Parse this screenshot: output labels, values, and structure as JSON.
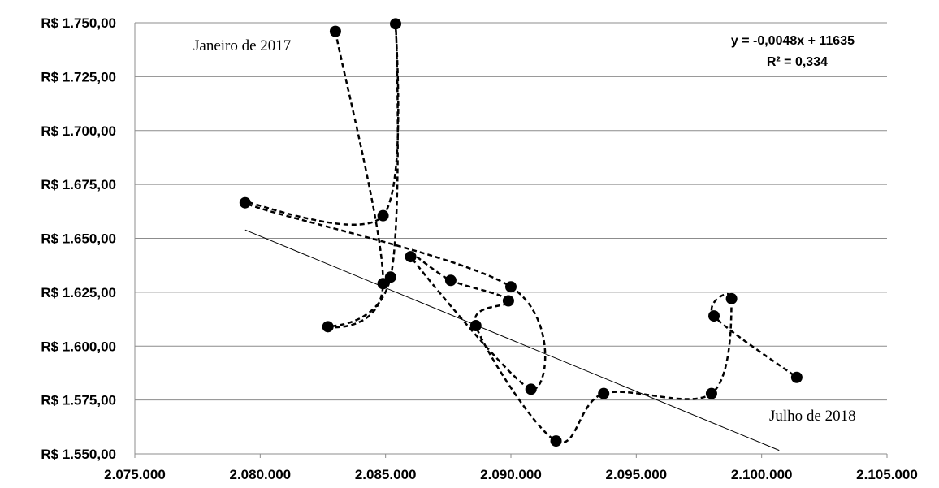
{
  "chart_data": {
    "type": "scatter",
    "title": "",
    "xlabel": "",
    "ylabel": "",
    "xlim": [
      2075000,
      2105000
    ],
    "ylim": [
      1550,
      1750
    ],
    "x_ticks": [
      2075000,
      2080000,
      2085000,
      2090000,
      2095000,
      2100000,
      2105000
    ],
    "x_tick_labels": [
      "2.075.000",
      "2.080.000",
      "2.085.000",
      "2.090.000",
      "2.095.000",
      "2.100.000",
      "2.105.000"
    ],
    "y_ticks": [
      1550,
      1575,
      1600,
      1625,
      1650,
      1675,
      1700,
      1725,
      1750
    ],
    "y_tick_labels": [
      "R$ 1.550,00",
      "R$ 1.575,00",
      "R$ 1.600,00",
      "R$ 1.625,00",
      "R$ 1.650,00",
      "R$ 1.675,00",
      "R$ 1.700,00",
      "R$ 1.725,00",
      "R$ 1.750,00"
    ],
    "grid": "horizontal",
    "connector": "smoothed dashed line in chronological order",
    "series": [
      {
        "color": "#000000",
        "points": [
          {
            "x": 2083000,
            "y": 1746.0
          },
          {
            "x": 2084900,
            "y": 1629.0
          },
          {
            "x": 2082700,
            "y": 1609.0
          },
          {
            "x": 2085200,
            "y": 1632.0
          },
          {
            "x": 2085400,
            "y": 1749.5
          },
          {
            "x": 2084900,
            "y": 1660.5
          },
          {
            "x": 2079400,
            "y": 1666.5
          },
          {
            "x": 2090000,
            "y": 1627.5
          },
          {
            "x": 2090800,
            "y": 1580.0
          },
          {
            "x": 2086000,
            "y": 1641.5
          },
          {
            "x": 2087600,
            "y": 1630.5
          },
          {
            "x": 2089900,
            "y": 1621.0
          },
          {
            "x": 2088600,
            "y": 1609.5
          },
          {
            "x": 2091800,
            "y": 1556.0
          },
          {
            "x": 2093700,
            "y": 1578.0
          },
          {
            "x": 2098000,
            "y": 1578.0
          },
          {
            "x": 2098800,
            "y": 1622.0
          },
          {
            "x": 2098100,
            "y": 1614.0
          },
          {
            "x": 2101400,
            "y": 1585.5
          }
        ]
      }
    ],
    "trendline": {
      "type": "linear",
      "x_range": [
        2079400,
        2100700
      ],
      "equation": "y = -0,0048x + 11635",
      "r2_label": "R² = 0,334"
    },
    "annotations": {
      "start_label": "Janeiro de 2017",
      "end_label": "Julho de 2018"
    }
  }
}
